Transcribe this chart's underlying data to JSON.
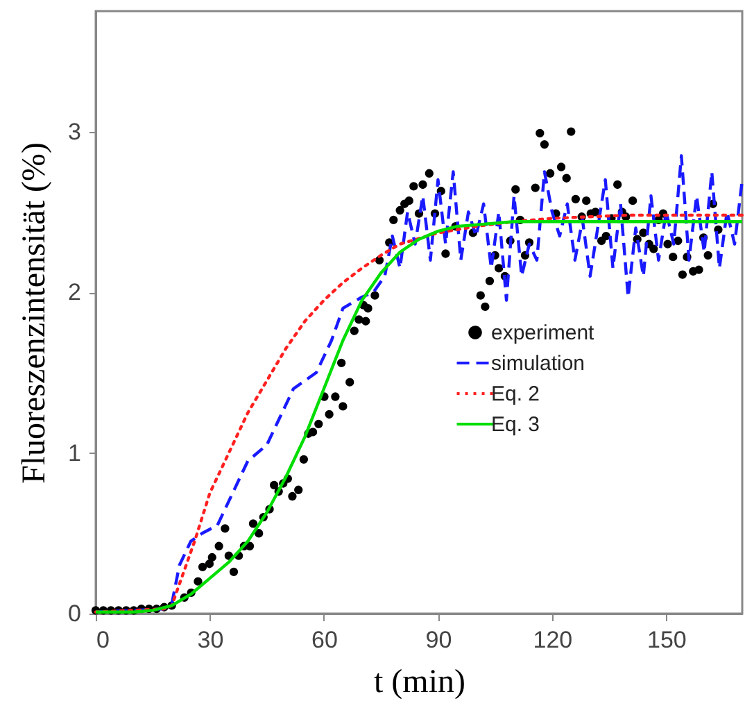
{
  "chart_data": {
    "type": "line",
    "xlabel": "t (min)",
    "ylabel": "Fluoreszenzintensität  (%)",
    "xlim": [
      0,
      170
    ],
    "ylim": [
      0,
      3.75
    ],
    "xticks": [
      0,
      30,
      60,
      90,
      120,
      150
    ],
    "yticks": [
      0,
      1,
      2,
      3
    ],
    "grid": false,
    "legend": "bottom right",
    "series": [
      {
        "name": "experiment",
        "type": "scatter",
        "color": "#000000",
        "marker": "circle",
        "x": [
          0,
          2,
          4,
          6,
          8,
          10,
          12,
          14,
          16,
          18,
          20,
          23.3,
          25.1,
          26.9,
          28.1,
          29.9,
          30.6,
          32.4,
          34,
          35,
          36.3,
          37.6,
          39,
          40.5,
          41.4,
          42.9,
          44.1,
          45.7,
          46.9,
          48.1,
          49.3,
          50.5,
          51.7,
          53.3,
          54.7,
          55.9,
          57.1,
          58.6,
          60.1,
          61.4,
          63,
          64.6,
          65,
          66.8,
          68,
          69.2,
          70.4,
          71,
          71.6,
          73.4,
          74.6,
          77.2,
          78.3,
          80,
          81.2,
          82.4,
          83.6,
          85,
          86,
          87.7,
          89.2,
          90.8,
          92,
          94.6,
          99.2,
          101.2,
          102.4,
          103.6,
          105,
          106,
          107.6,
          109,
          110.4,
          111.6,
          112.9,
          114,
          115.6,
          116.8,
          118,
          119.5,
          121,
          122.4,
          123.8,
          125,
          126.2,
          127.8,
          129,
          130.2,
          131.4,
          133,
          134.2,
          135.6,
          137.2,
          138.4,
          139.4,
          141.2,
          142.4,
          144,
          145.5,
          146.7,
          148,
          149.2,
          150.4,
          151.8,
          153.1,
          154.3,
          155.5,
          157.1,
          158.6,
          159.8,
          161,
          162.3,
          163.7
        ],
        "values": [
          0.02,
          0.02,
          0.02,
          0.02,
          0.02,
          0.02,
          0.03,
          0.03,
          0.03,
          0.04,
          0.05,
          0.1,
          0.13,
          0.2,
          0.29,
          0.31,
          0.35,
          0.42,
          0.53,
          0.36,
          0.26,
          0.36,
          0.42,
          0.42,
          0.56,
          0.5,
          0.6,
          0.65,
          0.8,
          0.76,
          0.81,
          0.84,
          0.73,
          0.77,
          0.96,
          1.12,
          1.13,
          1.18,
          1.35,
          1.24,
          1.35,
          1.56,
          1.29,
          1.44,
          1.76,
          1.83,
          1.92,
          1.82,
          1.9,
          1.98,
          2.2,
          2.31,
          2.45,
          2.51,
          2.55,
          2.57,
          2.66,
          2.49,
          2.67,
          2.74,
          2.49,
          2.63,
          2.24,
          2.41,
          2.37,
          1.98,
          1.91,
          2.07,
          2.23,
          2.15,
          2.1,
          2.32,
          2.64,
          2.45,
          2.23,
          2.31,
          2.65,
          2.99,
          2.92,
          2.74,
          2.49,
          2.78,
          2.71,
          3.0,
          2.58,
          2.47,
          2.57,
          2.49,
          2.5,
          2.32,
          2.35,
          2.46,
          2.67,
          2.5,
          2.47,
          2.57,
          2.33,
          2.37,
          2.3,
          2.27,
          2.45,
          2.49,
          2.3,
          2.22,
          2.32,
          2.11,
          2.22,
          2.13,
          2.14,
          2.34,
          2.23,
          2.55,
          2.39
        ]
      },
      {
        "name": "simulation",
        "color": "#1a1aff",
        "line_style": "dashed",
        "x": [
          0,
          10,
          18,
          20,
          22,
          25,
          28,
          32,
          36,
          40,
          45,
          48,
          52,
          58,
          62,
          65,
          70,
          73,
          76,
          78,
          80,
          82,
          84,
          86,
          88,
          90,
          92,
          94,
          96,
          98,
          100,
          102,
          104,
          106,
          108,
          110,
          112,
          114,
          116,
          118,
          120,
          122,
          124,
          126,
          128,
          130,
          132,
          134,
          136,
          138,
          140,
          142,
          144,
          146,
          148,
          150,
          152,
          154,
          156,
          158,
          160,
          162,
          164,
          166,
          168,
          170
        ],
        "values": [
          0.01,
          0.02,
          0.03,
          0.06,
          0.3,
          0.45,
          0.5,
          0.55,
          0.75,
          0.95,
          1.05,
          1.2,
          1.4,
          1.5,
          1.7,
          1.9,
          1.97,
          2.0,
          2.1,
          2.35,
          2.15,
          2.5,
          2.3,
          2.6,
          2.2,
          2.7,
          2.3,
          2.75,
          2.2,
          2.5,
          2.35,
          2.55,
          2.15,
          2.5,
          1.95,
          2.6,
          2.1,
          2.3,
          2.2,
          2.75,
          2.5,
          2.35,
          2.55,
          2.2,
          2.45,
          2.1,
          2.4,
          2.7,
          2.15,
          2.55,
          1.97,
          2.4,
          2.1,
          2.6,
          2.2,
          2.5,
          2.3,
          2.85,
          2.2,
          2.6,
          2.25,
          2.75,
          2.15,
          2.5,
          2.3,
          2.7
        ]
      },
      {
        "name": "Eq. 2",
        "color": "#ff2020",
        "line_style": "dotted",
        "x": [
          0,
          10,
          18,
          20,
          23,
          26,
          30,
          35,
          40,
          45,
          50,
          55,
          60,
          65,
          70,
          75,
          80,
          90,
          100,
          110,
          120,
          140,
          170
        ],
        "values": [
          0.01,
          0.02,
          0.03,
          0.05,
          0.25,
          0.45,
          0.75,
          1.0,
          1.25,
          1.45,
          1.65,
          1.82,
          1.95,
          2.06,
          2.15,
          2.23,
          2.3,
          2.37,
          2.41,
          2.44,
          2.46,
          2.48,
          2.48
        ]
      },
      {
        "name": "Eq. 3",
        "color": "#00dd00",
        "line_style": "solid",
        "x": [
          0,
          10,
          15,
          20,
          25,
          30,
          35,
          40,
          45,
          50,
          55,
          60,
          65,
          70,
          75,
          80,
          85,
          90,
          95,
          100,
          110,
          120,
          140,
          170
        ],
        "values": [
          0.01,
          0.01,
          0.02,
          0.05,
          0.12,
          0.22,
          0.32,
          0.45,
          0.63,
          0.85,
          1.1,
          1.4,
          1.7,
          1.95,
          2.12,
          2.25,
          2.33,
          2.38,
          2.41,
          2.42,
          2.44,
          2.44,
          2.44,
          2.44
        ]
      }
    ]
  }
}
